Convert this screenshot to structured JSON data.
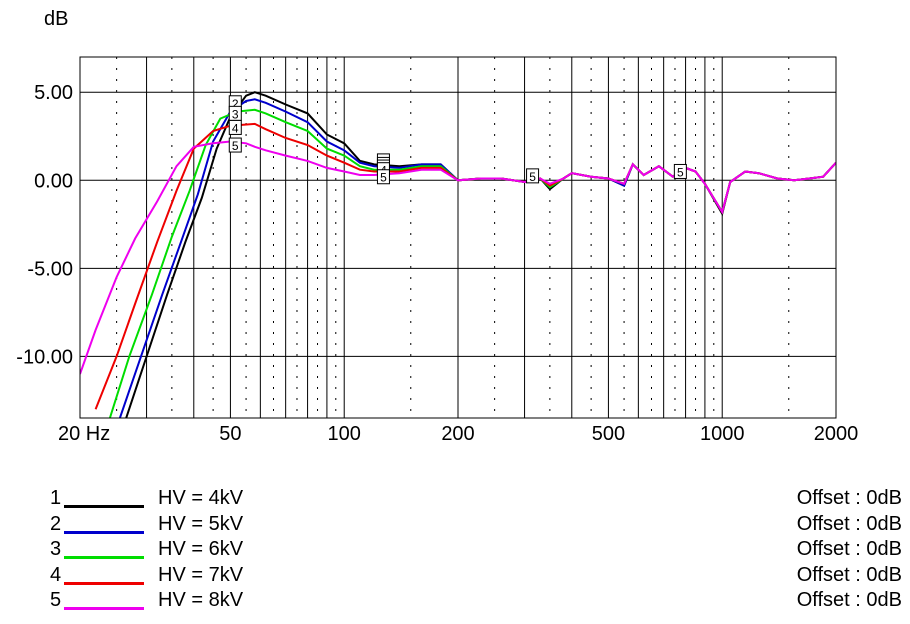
{
  "chart_data": {
    "type": "line",
    "ylabel": "dB",
    "x_scale": "log",
    "xlim": [
      20,
      2000
    ],
    "ylim": [
      -13.5,
      7
    ],
    "x_ticks": [
      {
        "value": 20,
        "label": "20 Hz"
      },
      {
        "value": 50,
        "label": "50"
      },
      {
        "value": 100,
        "label": "100"
      },
      {
        "value": 200,
        "label": "200"
      },
      {
        "value": 500,
        "label": "500"
      },
      {
        "value": 1000,
        "label": "1000"
      },
      {
        "value": 2000,
        "label": "2000"
      }
    ],
    "y_ticks": [
      {
        "value": 5,
        "label": "5.00"
      },
      {
        "value": 0,
        "label": "0.00"
      },
      {
        "value": -5,
        "label": "-5.00"
      },
      {
        "value": -10,
        "label": "-10.00"
      }
    ],
    "grid": true,
    "legend_position": "bottom",
    "series": [
      {
        "id": "1",
        "name": "HV = 4kV",
        "offset": "Offset : 0dB",
        "color": "#000000",
        "x": [
          26.5,
          30,
          34,
          38,
          42,
          46,
          50,
          55,
          58,
          62,
          70,
          80,
          90,
          100,
          110,
          120,
          140,
          160,
          180,
          200,
          230,
          260,
          300,
          330,
          350,
          380,
          400,
          450,
          500,
          550,
          580,
          620,
          680,
          740,
          800,
          850,
          900,
          1000,
          1050,
          1150,
          1250,
          1400,
          1550,
          1700,
          1850,
          2000
        ],
        "y": [
          -13.5,
          -10.0,
          -6.5,
          -3.5,
          -1.0,
          1.8,
          3.6,
          4.8,
          5.0,
          4.8,
          4.3,
          3.8,
          2.6,
          2.1,
          1.1,
          0.9,
          0.8,
          0.9,
          0.9,
          0.0,
          0.1,
          0.1,
          -0.1,
          0.1,
          -0.5,
          0.1,
          0.4,
          0.2,
          0.1,
          -0.3,
          0.9,
          0.3,
          0.8,
          0.2,
          0.7,
          0.5,
          -0.2,
          -1.9,
          -0.1,
          0.5,
          0.4,
          0.1,
          0.0,
          0.1,
          0.2,
          1.0
        ]
      },
      {
        "id": "2",
        "name": "HV = 5kV",
        "offset": "Offset : 0dB",
        "color": "#0000cc",
        "x": [
          25.5,
          29,
          33,
          37,
          41,
          45,
          50,
          55,
          58,
          62,
          70,
          80,
          90,
          100,
          110,
          120,
          140,
          160,
          180,
          200,
          230,
          260,
          300,
          330,
          350,
          380,
          400,
          450,
          500,
          550,
          580,
          620,
          680,
          740,
          800,
          850,
          900,
          1000,
          1050,
          1150,
          1250,
          1400,
          1550,
          1700,
          1850,
          2000
        ],
        "y": [
          -13.5,
          -10.0,
          -6.5,
          -3.5,
          -0.8,
          2.2,
          3.9,
          4.5,
          4.6,
          4.4,
          3.9,
          3.3,
          2.2,
          1.7,
          1.0,
          0.8,
          0.7,
          0.9,
          0.9,
          0.0,
          0.1,
          0.1,
          -0.1,
          0.1,
          -0.4,
          0.1,
          0.4,
          0.2,
          0.1,
          -0.3,
          0.9,
          0.3,
          0.8,
          0.2,
          0.7,
          0.5,
          -0.2,
          -1.8,
          -0.1,
          0.5,
          0.4,
          0.1,
          0.0,
          0.1,
          0.2,
          1.0
        ]
      },
      {
        "id": "3",
        "name": "HV = 6kV",
        "offset": "Offset : 0dB",
        "color": "#00dd00",
        "x": [
          24,
          27,
          31,
          35,
          39,
          43,
          47,
          52,
          58,
          62,
          70,
          80,
          90,
          100,
          110,
          120,
          140,
          160,
          180,
          200,
          230,
          260,
          300,
          330,
          350,
          380,
          400,
          450,
          500,
          550,
          580,
          620,
          680,
          740,
          800,
          850,
          900,
          1000,
          1050,
          1150,
          1250,
          1400,
          1550,
          1700,
          1850,
          2000
        ],
        "y": [
          -13.5,
          -10.0,
          -6.5,
          -3.2,
          -0.6,
          2.0,
          3.5,
          3.9,
          4.0,
          3.8,
          3.3,
          2.8,
          1.8,
          1.4,
          0.8,
          0.6,
          0.6,
          0.8,
          0.8,
          0.0,
          0.1,
          0.1,
          -0.1,
          0.1,
          -0.4,
          0.1,
          0.4,
          0.2,
          0.1,
          -0.2,
          0.9,
          0.3,
          0.8,
          0.2,
          0.7,
          0.5,
          -0.2,
          -1.8,
          -0.1,
          0.5,
          0.4,
          0.1,
          0.0,
          0.1,
          0.2,
          1.0
        ]
      },
      {
        "id": "4",
        "name": "HV = 7kV",
        "offset": "Offset : 0dB",
        "color": "#ee0000",
        "x": [
          22,
          25,
          28,
          32,
          36,
          40,
          45,
          50,
          58,
          62,
          70,
          80,
          90,
          100,
          110,
          120,
          140,
          160,
          180,
          200,
          230,
          260,
          300,
          330,
          350,
          380,
          400,
          450,
          500,
          550,
          580,
          620,
          680,
          740,
          800,
          850,
          900,
          1000,
          1050,
          1150,
          1250,
          1400,
          1550,
          1700,
          1850,
          2000
        ],
        "y": [
          -13.0,
          -10.0,
          -7.0,
          -3.5,
          -0.6,
          1.8,
          2.8,
          3.1,
          3.2,
          2.9,
          2.4,
          2.0,
          1.4,
          1.0,
          0.6,
          0.5,
          0.5,
          0.7,
          0.7,
          0.0,
          0.1,
          0.1,
          -0.1,
          0.1,
          -0.3,
          0.1,
          0.4,
          0.2,
          0.1,
          -0.2,
          0.9,
          0.3,
          0.8,
          0.2,
          0.7,
          0.5,
          -0.2,
          -1.8,
          -0.1,
          0.5,
          0.4,
          0.1,
          0.0,
          0.1,
          0.2,
          1.0
        ]
      },
      {
        "id": "5",
        "name": "HV = 8kV",
        "offset": "Offset : 0dB",
        "color": "#ee00ee",
        "x": [
          20,
          22,
          25,
          28,
          32,
          36,
          40,
          45,
          50,
          55,
          58,
          62,
          70,
          80,
          90,
          100,
          110,
          120,
          140,
          160,
          180,
          200,
          230,
          260,
          300,
          330,
          350,
          380,
          400,
          450,
          500,
          550,
          580,
          620,
          680,
          740,
          800,
          850,
          900,
          1000,
          1050,
          1150,
          1250,
          1400,
          1550,
          1700,
          1850,
          2000
        ],
        "y": [
          -11.0,
          -8.5,
          -5.5,
          -3.3,
          -1.2,
          0.8,
          1.9,
          2.1,
          2.2,
          2.1,
          1.9,
          1.7,
          1.4,
          1.1,
          0.7,
          0.5,
          0.3,
          0.3,
          0.4,
          0.6,
          0.6,
          0.0,
          0.1,
          0.1,
          -0.1,
          0.1,
          -0.2,
          0.1,
          0.4,
          0.2,
          0.1,
          -0.2,
          0.9,
          0.3,
          0.8,
          0.2,
          0.7,
          0.5,
          -0.2,
          -1.8,
          -0.1,
          0.5,
          0.4,
          0.1,
          0.0,
          0.1,
          0.2,
          1.0
        ]
      }
    ],
    "annotations": [
      {
        "text": "2",
        "x": 51.5,
        "y": 4.4
      },
      {
        "text": "3",
        "x": 51.5,
        "y": 3.8
      },
      {
        "text": "4",
        "x": 51.5,
        "y": 3.0
      },
      {
        "text": "5",
        "x": 51.5,
        "y": 2.0
      },
      {
        "text": "1",
        "x": 127,
        "y": 1.1
      },
      {
        "text": "2",
        "x": 127,
        "y": 0.9
      },
      {
        "text": "3",
        "x": 127,
        "y": 0.75
      },
      {
        "text": "4",
        "x": 127,
        "y": 0.6
      },
      {
        "text": "5",
        "x": 127,
        "y": 0.2
      },
      {
        "text": "5",
        "x": 315,
        "y": 0.25
      },
      {
        "text": "5",
        "x": 775,
        "y": 0.5
      }
    ]
  }
}
